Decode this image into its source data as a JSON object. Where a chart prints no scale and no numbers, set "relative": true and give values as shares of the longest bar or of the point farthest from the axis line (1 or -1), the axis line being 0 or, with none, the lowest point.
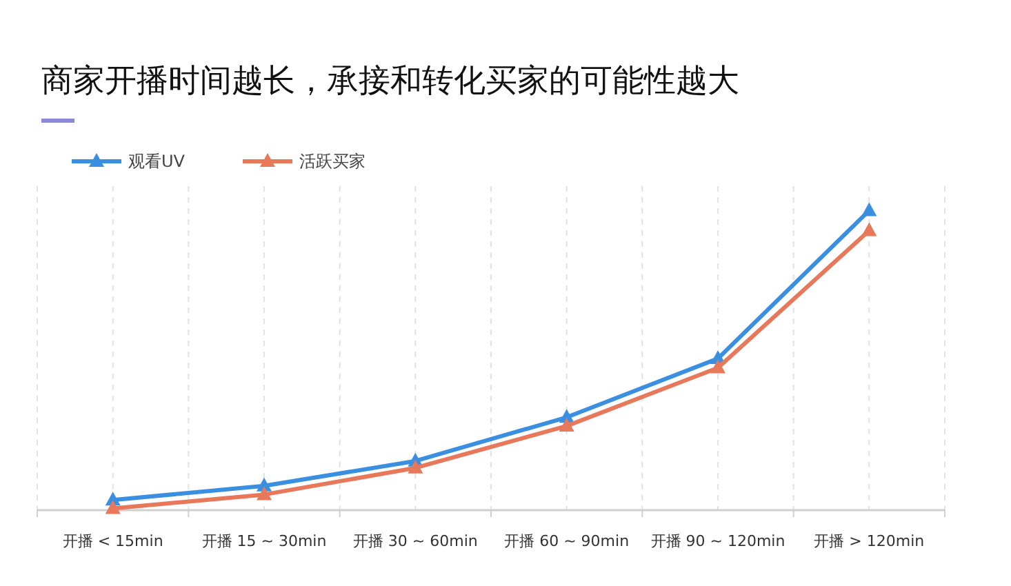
{
  "chart_data": {
    "type": "line",
    "title": "商家开播时间越长，承接和转化买家的可能性越大",
    "categories": [
      "开播 < 15min",
      "开播 15 ~ 30min",
      "开播 30 ~ 60min",
      "开播 60 ~ 90min",
      "开播 90 ~ 120min",
      "开播 > 120min"
    ],
    "relative": true,
    "grid": "x",
    "legend": "top left",
    "marker": "triangle",
    "line_style": "solid",
    "series": [
      {
        "name": "观看UV",
        "color": "#3b8fe0",
        "values": [
          0.034,
          0.081,
          0.164,
          0.31,
          0.506,
          1
        ]
      },
      {
        "name": "活跃买家",
        "color": "#e8785a",
        "values": [
          0.006,
          0.052,
          0.141,
          0.281,
          0.475,
          0.933
        ]
      }
    ]
  }
}
